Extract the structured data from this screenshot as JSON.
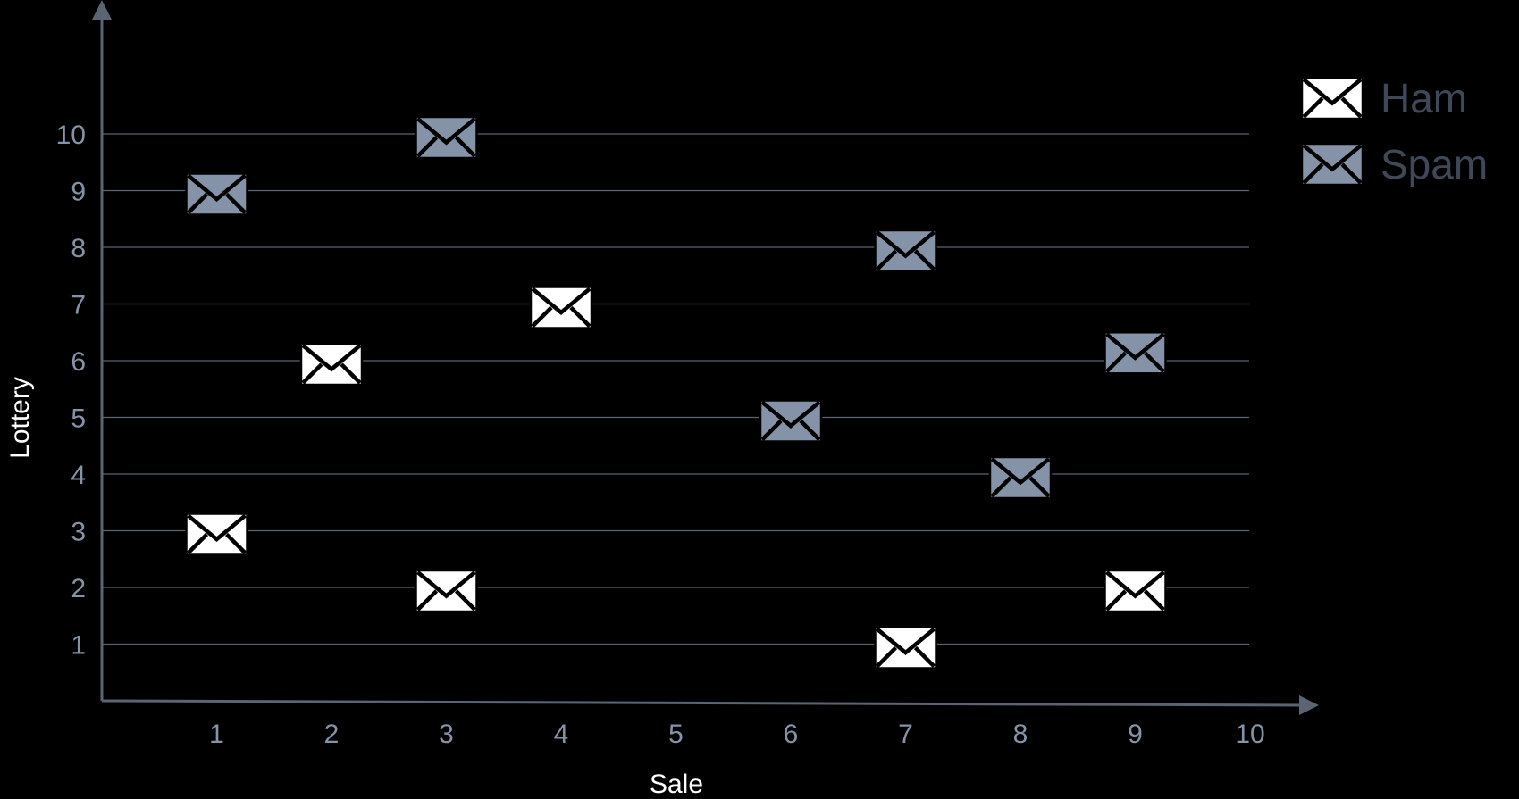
{
  "chart_data": {
    "type": "scatter",
    "xlabel": "Sale",
    "ylabel": "Lottery",
    "xlim": [
      0,
      10
    ],
    "ylim": [
      0,
      10
    ],
    "x_ticks": [
      "1",
      "2",
      "3",
      "4",
      "5",
      "6",
      "7",
      "8",
      "9",
      "10"
    ],
    "y_ticks": [
      "1",
      "2",
      "3",
      "4",
      "5",
      "6",
      "7",
      "8",
      "9",
      "10"
    ],
    "grid": "horizontal",
    "legend_position": "top-right",
    "marker": "envelope-icon",
    "series": [
      {
        "name": "Ham",
        "color": "#ffffff",
        "points": [
          {
            "x": 1,
            "y": 3
          },
          {
            "x": 2,
            "y": 6
          },
          {
            "x": 3,
            "y": 2
          },
          {
            "x": 4,
            "y": 7
          },
          {
            "x": 7,
            "y": 1
          },
          {
            "x": 9,
            "y": 2
          }
        ]
      },
      {
        "name": "Spam",
        "color": "#8593a8",
        "points": [
          {
            "x": 1,
            "y": 9
          },
          {
            "x": 3,
            "y": 10
          },
          {
            "x": 6,
            "y": 5
          },
          {
            "x": 7,
            "y": 8
          },
          {
            "x": 8,
            "y": 4
          },
          {
            "x": 9,
            "y": 6.2
          }
        ]
      }
    ],
    "colors": {
      "axis": "#5a6472",
      "grid": "#5a6472",
      "tick_text": "#8593a8",
      "axis_text": "#ffffff",
      "legend_text": "#3f4856",
      "marker_stroke": "#000000"
    }
  }
}
